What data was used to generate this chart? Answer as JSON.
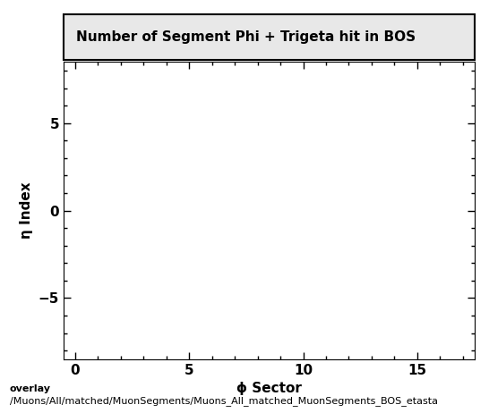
{
  "title": "Number of Segment Phi + Trigeta hit in BOS",
  "xlabel": "ϕ Sector",
  "ylabel": "η Index",
  "xlim": [
    -0.5,
    17.5
  ],
  "ylim": [
    -8.5,
    8.5
  ],
  "xticks": [
    0,
    5,
    10,
    15
  ],
  "yticks": [
    -5,
    0,
    5
  ],
  "caption_line1": "overlay",
  "caption_line2": "/Muons/All/matched/MuonSegments/Muons_All_matched_MuonSegments_BOS_etasta",
  "bg_color": "#ffffff",
  "title_fontsize": 11,
  "label_fontsize": 11,
  "tick_fontsize": 11,
  "caption_fontsize": 8
}
